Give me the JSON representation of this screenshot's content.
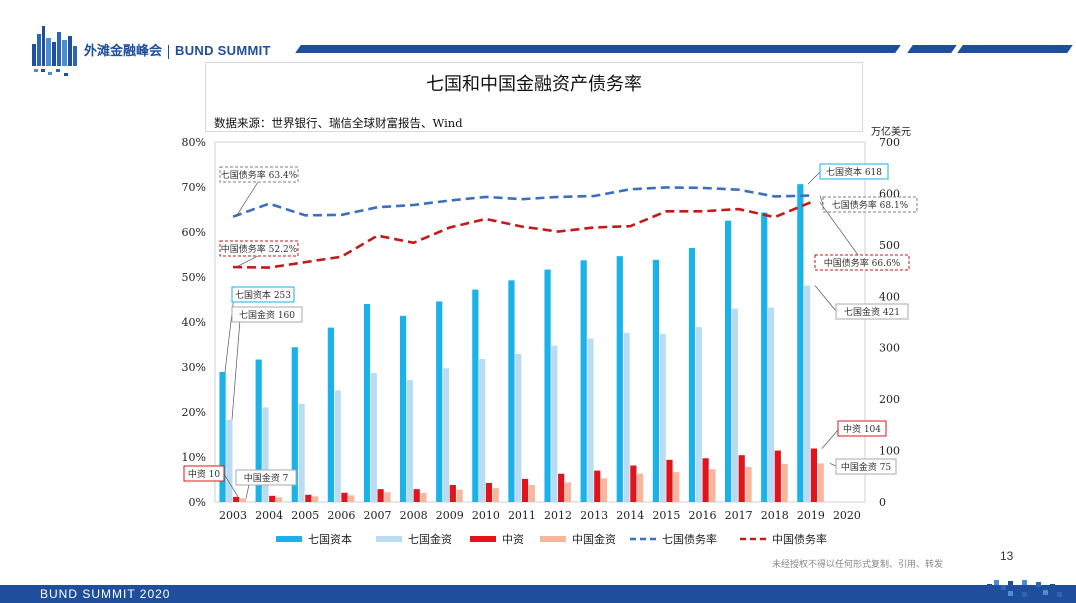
{
  "brand": {
    "cn": "外滩金融峰会",
    "en": "BUND SUMMIT"
  },
  "slide": {
    "page_number": "13",
    "footer": "BUND SUMMIT 2020",
    "disclaimer": "未经授权不得以任何形式复制、引用、转发"
  },
  "colors": {
    "g7_capital": "#1ab2e8",
    "g7_financial": "#b9dcf2",
    "china_capital": "#e0141c",
    "china_financial": "#f7b79c",
    "g7_ratio_line": "#3b6fbf",
    "china_ratio_line": "#c41a1a",
    "brand": "#1f4f9c"
  },
  "chart_data": {
    "type": "bar",
    "title": "七国和中国金融资产债务率",
    "source": "数据来源：世界银行、瑞信全球财富报告、Wind",
    "categories": [
      "2003",
      "2004",
      "2005",
      "2006",
      "2007",
      "2008",
      "2009",
      "2010",
      "2011",
      "2012",
      "2013",
      "2014",
      "2015",
      "2016",
      "2017",
      "2018",
      "2019",
      "2020"
    ],
    "left_axis": {
      "unit": "%",
      "range": [
        0,
        80
      ],
      "ticks": [
        "0%",
        "10%",
        "20%",
        "30%",
        "40%",
        "50%",
        "60%",
        "70%",
        "80%"
      ]
    },
    "right_axis": {
      "label": "万亿美元",
      "range": [
        0,
        700
      ],
      "ticks": [
        "0",
        "100",
        "200",
        "300",
        "400",
        "500",
        "600",
        "700"
      ]
    },
    "series": [
      {
        "name": "七国资本",
        "kind": "bar",
        "axis": "right",
        "values": [
          253,
          277,
          301,
          339,
          385,
          362,
          390,
          413,
          431,
          452,
          470,
          478,
          471,
          494,
          547,
          563,
          618,
          null
        ]
      },
      {
        "name": "七国金资",
        "kind": "bar",
        "axis": "right",
        "values": [
          160,
          184,
          191,
          217,
          251,
          237,
          260,
          278,
          288,
          304,
          318,
          329,
          327,
          340,
          376,
          378,
          421,
          null
        ]
      },
      {
        "name": "中资",
        "kind": "bar",
        "axis": "right",
        "values": [
          10,
          12,
          14,
          18,
          25,
          25,
          33,
          37,
          45,
          55,
          61,
          71,
          82,
          85,
          91,
          100,
          104,
          null
        ]
      },
      {
        "name": "中国金资",
        "kind": "bar",
        "axis": "right",
        "values": [
          7,
          9,
          11,
          13,
          19,
          18,
          24,
          27,
          33,
          38,
          46,
          55,
          58,
          64,
          68,
          74,
          75,
          null
        ]
      },
      {
        "name": "七国债务率",
        "kind": "line",
        "style": "dashed",
        "axis": "left",
        "values": [
          63.4,
          66.3,
          63.7,
          63.8,
          65.5,
          66.0,
          67.0,
          67.8,
          67.3,
          67.8,
          68.0,
          69.5,
          69.9,
          69.8,
          69.4,
          67.9,
          68.1,
          null
        ]
      },
      {
        "name": "中国债务率",
        "kind": "line",
        "style": "dashed",
        "axis": "left",
        "values": [
          52.2,
          52.1,
          53.3,
          54.5,
          59.2,
          57.6,
          61.0,
          62.9,
          61.2,
          60.1,
          61.0,
          61.3,
          64.6,
          64.6,
          65.1,
          63.3,
          66.6,
          null
        ]
      }
    ],
    "annotations": [
      {
        "text": "七国债务率 63.4%"
      },
      {
        "text": "中国债务率 52.2%"
      },
      {
        "text": "七国资本 253"
      },
      {
        "text": "七国金资 160"
      },
      {
        "text": "中资 10"
      },
      {
        "text": "中国金资 7"
      },
      {
        "text": "七国资本 618"
      },
      {
        "text": "七国债务率 68.1%"
      },
      {
        "text": "中国债务率 66.6%"
      },
      {
        "text": "七国金资 421"
      },
      {
        "text": "中资 104"
      },
      {
        "text": "中国金资 75"
      }
    ]
  }
}
